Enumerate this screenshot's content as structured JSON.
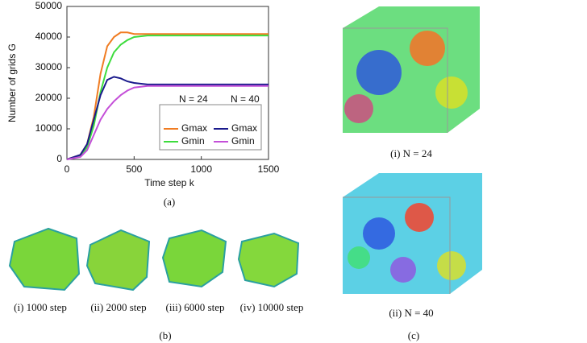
{
  "chart_data": {
    "type": "line",
    "x_label": "Time step  k",
    "y_label": "Number of grids  G",
    "x": [
      0,
      100,
      150,
      200,
      250,
      300,
      350,
      400,
      450,
      500,
      600,
      800,
      1000,
      1500
    ],
    "series": [
      {
        "name": "Gmax",
        "color": "#f07c22",
        "values": [
          0,
          1500,
          5000,
          14000,
          28000,
          37000,
          40000,
          41500,
          41500,
          41000,
          41000,
          41000,
          41000,
          41000
        ]
      },
      {
        "name": "Gmin",
        "color": "#3ddc3d",
        "values": [
          0,
          1000,
          4000,
          11000,
          22000,
          30000,
          35000,
          37500,
          39000,
          40000,
          40500,
          40500,
          40500,
          40500
        ]
      },
      {
        "name": "Gmax",
        "color": "#1a1a8c",
        "values": [
          0,
          1500,
          5000,
          13000,
          21000,
          26000,
          27000,
          26500,
          25500,
          25000,
          24500,
          24500,
          24500,
          24500
        ]
      },
      {
        "name": "Gmin",
        "color": "#c44fd8",
        "values": [
          0,
          800,
          3000,
          8000,
          13000,
          16500,
          19000,
          21000,
          22500,
          23500,
          24000,
          24000,
          24000,
          24000
        ]
      }
    ],
    "legend_titles": [
      "N = 24",
      "N = 40"
    ],
    "xlim": [
      0,
      1500
    ],
    "xticks": [
      0,
      500,
      1000,
      1500
    ],
    "ylim": [
      0,
      50000
    ],
    "yticks": [
      0,
      10000,
      20000,
      30000,
      40000,
      50000
    ],
    "grid": false
  },
  "figure": {
    "panel_a": {
      "label": "(a)"
    },
    "panel_b": {
      "label": "(b)",
      "captions": [
        "(i) 1000 step",
        "(ii) 2000 step",
        "(iii) 6000 step",
        "(iv) 10000 step"
      ]
    },
    "panel_c": {
      "label": "(c)",
      "captions": [
        "(i) N = 24",
        "(ii) N = 40"
      ]
    }
  }
}
